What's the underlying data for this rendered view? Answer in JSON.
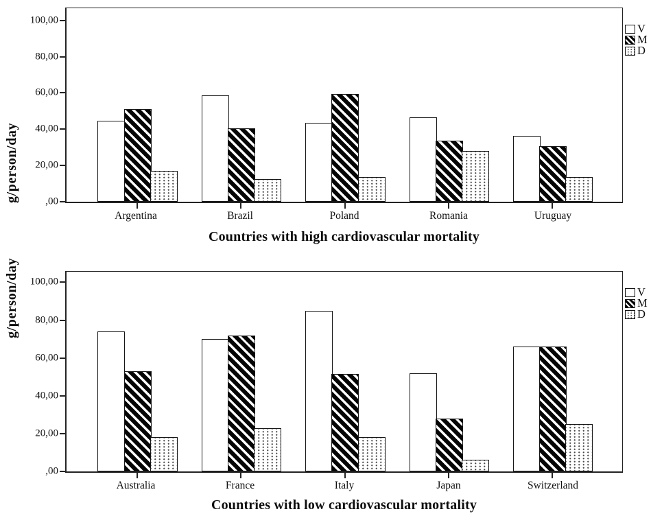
{
  "figure": {
    "background": "#ffffff",
    "ink_color": "#1a1a1a"
  },
  "chart_data": [
    {
      "type": "bar",
      "title": "Countries with high cardiovascular mortality",
      "ylabel": "g/person/day",
      "categories": [
        "Argentina",
        "Brazil",
        "Poland",
        "Romania",
        "Uruguay"
      ],
      "series": [
        {
          "name": "V",
          "pattern": "plain",
          "values": [
            44.5,
            58.5,
            43.5,
            46.5,
            36.5
          ]
        },
        {
          "name": "M",
          "pattern": "hatch",
          "values": [
            51,
            40.5,
            59.5,
            33.5,
            30.5
          ]
        },
        {
          "name": "D",
          "pattern": "dots",
          "values": [
            17,
            12.5,
            13.5,
            28,
            13.5
          ]
        }
      ],
      "yticks": [
        0,
        20,
        40,
        60,
        80,
        100
      ],
      "ytick_labels": [
        ",00",
        "20,00",
        "40,00",
        "60,00",
        "80,00",
        "100,00"
      ],
      "ymax": 106.7,
      "ylim": [
        0,
        106.7
      ],
      "grid": false,
      "legend_position": "right-top"
    },
    {
      "type": "bar",
      "title": "Countries with low cardiovascular mortality",
      "ylabel": "g/person/day",
      "categories": [
        "Australia",
        "France",
        "Italy",
        "Japan",
        "Switzerland"
      ],
      "series": [
        {
          "name": "V",
          "pattern": "plain",
          "values": [
            74,
            70,
            85,
            52,
            66
          ]
        },
        {
          "name": "M",
          "pattern": "hatch",
          "values": [
            53,
            72,
            51.5,
            28,
            66
          ]
        },
        {
          "name": "D",
          "pattern": "dots",
          "values": [
            18,
            23,
            18,
            6,
            25
          ]
        }
      ],
      "yticks": [
        0,
        20,
        40,
        60,
        80,
        100
      ],
      "ytick_labels": [
        ",00",
        "20,00",
        "40,00",
        "60,00",
        "80,00",
        "100,00"
      ],
      "ymax": 105.6,
      "ylim": [
        0,
        105.6
      ],
      "grid": false,
      "legend_position": "right-top"
    }
  ]
}
